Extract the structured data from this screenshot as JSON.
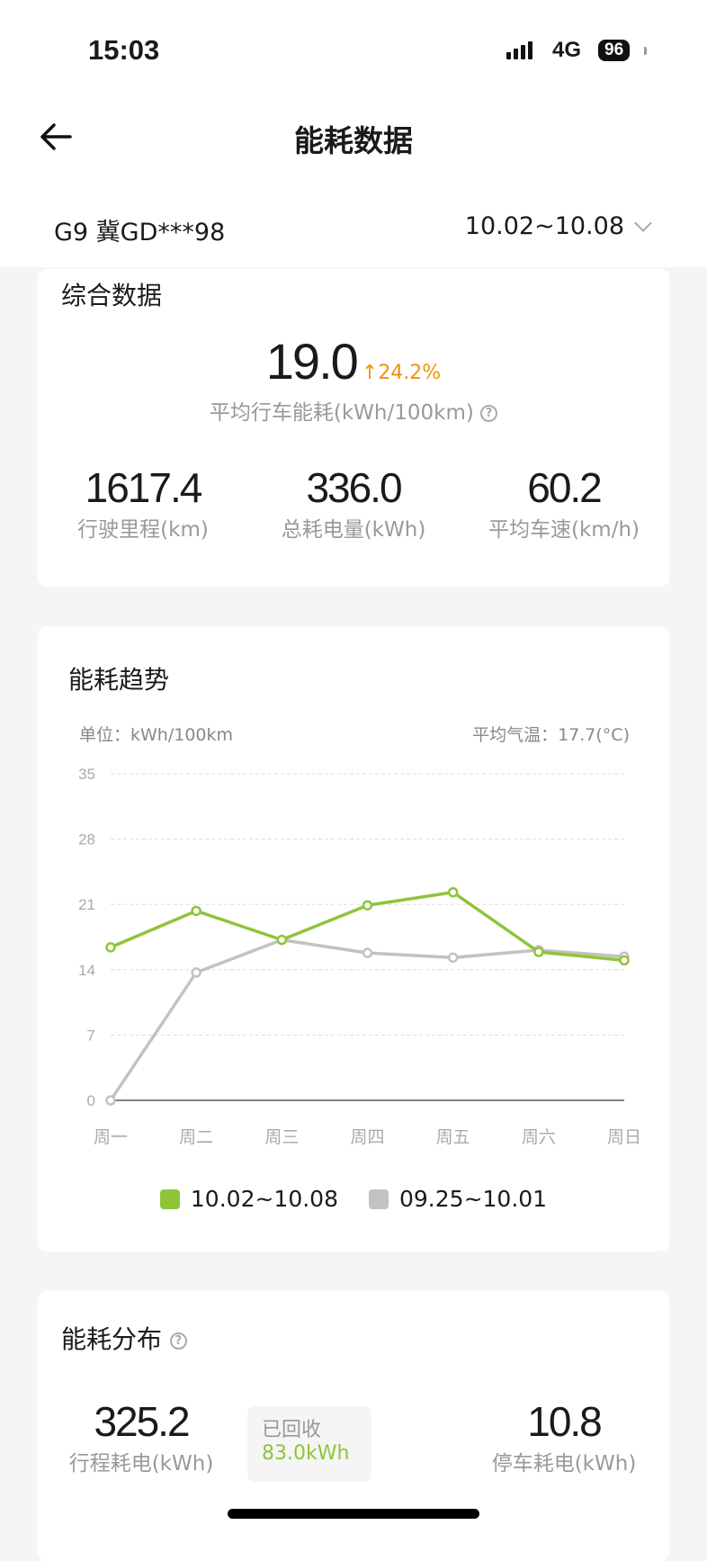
{
  "status_bar": {
    "time": "15:03",
    "network": "4G",
    "battery": "96"
  },
  "header": {
    "title": "能耗数据",
    "back_icon": "arrow-left-icon"
  },
  "vehicle": {
    "name": "G9 冀GD***98",
    "date_range": "10.02~10.08"
  },
  "summary": {
    "title": "综合数据",
    "avg_consumption": "19.0",
    "change": "24.2%",
    "change_direction": "up",
    "change_color": "#f0920c",
    "avg_label": "平均行车能耗(kWh/100km)",
    "stats": [
      {
        "value": "1617.4",
        "label": "行驶里程(km)"
      },
      {
        "value": "336.0",
        "label": "总耗电量(kWh)"
      },
      {
        "value": "60.2",
        "label": "平均车速(km/h)"
      }
    ]
  },
  "trend": {
    "title": "能耗趋势",
    "unit": "单位：kWh/100km",
    "temperature": "平均气温：17.7(°C)"
  },
  "chart_data": {
    "type": "line",
    "categories": [
      "周一",
      "周二",
      "周三",
      "周四",
      "周五",
      "周六",
      "周日"
    ],
    "ylim": [
      0,
      35
    ],
    "yticks": [
      "0",
      "7",
      "14",
      "21",
      "28",
      "35"
    ],
    "grid": true,
    "legend": "bottom",
    "series": [
      {
        "name": "10.02~10.08",
        "color": "#8fc43a",
        "values": [
          16.4,
          20.3,
          17.2,
          20.9,
          22.3,
          15.9,
          15.0
        ]
      },
      {
        "name": "09.25~10.01",
        "color": "#c2c2c2",
        "values": [
          0,
          13.7,
          17.2,
          15.8,
          15.3,
          16.1,
          15.4
        ]
      }
    ]
  },
  "distribution": {
    "title": "能耗分布",
    "trip_value": "325.2",
    "trip_label": "行程耗电(kWh)",
    "recovered_label": "已回收",
    "recovered_value": "83.0kWh",
    "parked_value": "10.8",
    "parked_label": "停车耗电(kWh)"
  }
}
